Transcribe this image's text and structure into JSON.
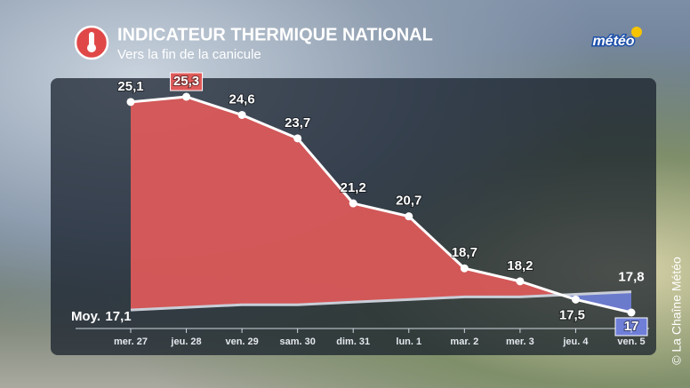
{
  "chart_data": {
    "type": "area",
    "title": "INDICATEUR THERMIQUE NATIONAL",
    "subtitle": "Vers la fin de la canicule",
    "logo": "météo",
    "credit": "© La Chaîne Météo",
    "categories": [
      "mer. 27",
      "jeu. 28",
      "ven. 29",
      "sam. 30",
      "dim. 31",
      "lun. 1",
      "mar. 2",
      "mer. 3",
      "jeu. 4",
      "ven. 5"
    ],
    "series": [
      {
        "name": "Indicateur",
        "color": "#e05a5a",
        "values": [
          25.1,
          25.3,
          24.6,
          23.7,
          21.2,
          20.7,
          18.7,
          18.2,
          17.5,
          17
        ],
        "value_labels": [
          "25,1",
          "25,3",
          "24,6",
          "23,7",
          "21,2",
          "20,7",
          "18,7",
          "18,2",
          "17,5",
          "17"
        ]
      },
      {
        "name": "Moy.",
        "color": "#6f7fd8",
        "values": [
          17.1,
          17.2,
          17.3,
          17.3,
          17.4,
          17.5,
          17.6,
          17.6,
          17.7,
          17.8
        ],
        "value_labels": [
          "17,1",
          null,
          null,
          null,
          null,
          null,
          null,
          null,
          null,
          "17,8"
        ]
      }
    ]
  }
}
